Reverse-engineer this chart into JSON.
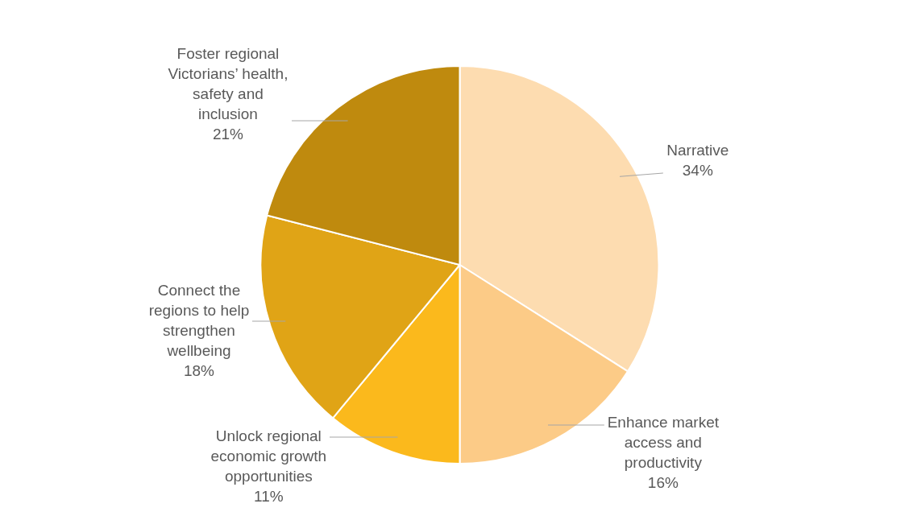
{
  "chart_data": {
    "type": "pie",
    "categories": [
      "Narrative",
      "Enhance market access and productivity",
      "Unlock regional economic growth opportunities",
      "Connect the regions to help strengthen wellbeing",
      "Foster regional Victorians’ health, safety and inclusion"
    ],
    "values": [
      34,
      16,
      11,
      18,
      21
    ],
    "value_labels": [
      "34%",
      "16%",
      "11%",
      "18%",
      "21%"
    ],
    "colors": [
      "#fddcb0",
      "#fccb87",
      "#fbb91c",
      "#e0a416",
      "#bf8a0e"
    ],
    "legend": false
  }
}
